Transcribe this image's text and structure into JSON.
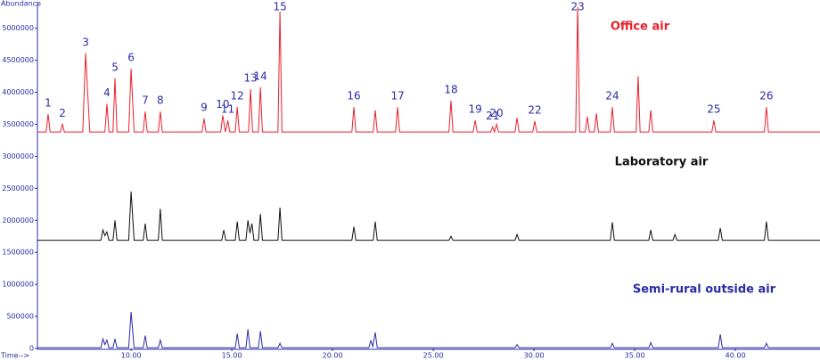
{
  "chart_data": {
    "type": "line",
    "y_label": "Abundance",
    "x_label": "Time-->",
    "xlim": [
      5.35,
      44.2
    ],
    "ylim": [
      0,
      5400000
    ],
    "xticks": [
      {
        "value": 10,
        "label": "10.00"
      },
      {
        "value": 15,
        "label": "15.00"
      },
      {
        "value": 20,
        "label": "20.00"
      },
      {
        "value": 25,
        "label": "25.00"
      },
      {
        "value": 30,
        "label": "30.00"
      },
      {
        "value": 35,
        "label": "35.00"
      },
      {
        "value": 40,
        "label": "40.00"
      }
    ],
    "yticks": [
      0,
      500000,
      1000000,
      1500000,
      2000000,
      2500000,
      3000000,
      3500000,
      4000000,
      4500000,
      5000000
    ],
    "series": [
      {
        "name": "Office air",
        "color": "#e8202a",
        "x": [
          5.35,
          5.78,
          5.88,
          5.98,
          6.49,
          6.59,
          6.69,
          7.6,
          7.74,
          7.95,
          8.7,
          8.8,
          8.9,
          9.1,
          9.2,
          9.3,
          9.88,
          10.0,
          10.15,
          10.6,
          10.7,
          10.8,
          11.35,
          11.45,
          11.55,
          13.52,
          13.62,
          13.72,
          14.45,
          14.55,
          14.68,
          14.8,
          14.9,
          15.17,
          15.27,
          15.37,
          15.83,
          15.93,
          16.03,
          16.32,
          16.42,
          16.52,
          17.29,
          17.39,
          17.49,
          20.96,
          21.06,
          21.16,
          22.02,
          22.12,
          22.22,
          23.13,
          23.23,
          23.33,
          25.78,
          25.88,
          25.98,
          26.98,
          27.08,
          27.18,
          27.85,
          27.95,
          28.04,
          28.14,
          28.24,
          29.06,
          29.16,
          29.26,
          29.94,
          30.04,
          30.14,
          32.07,
          32.17,
          32.27,
          32.55,
          32.65,
          32.75,
          33.0,
          33.1,
          33.2,
          33.79,
          33.89,
          33.99,
          35.07,
          35.17,
          35.27,
          35.7,
          35.8,
          35.9,
          38.83,
          38.93,
          39.03,
          41.44,
          41.54,
          41.64,
          44.2
        ],
        "values": [
          3380000,
          3380000,
          3660000,
          3380000,
          3380000,
          3500000,
          3380000,
          3380000,
          4610000,
          3380000,
          3380000,
          3820000,
          3380000,
          3380000,
          4220000,
          3380000,
          3380000,
          4370000,
          3380000,
          3380000,
          3700000,
          3380000,
          3380000,
          3700000,
          3380000,
          3380000,
          3590000,
          3380000,
          3380000,
          3640000,
          3380000,
          3560000,
          3380000,
          3380000,
          3770000,
          3380000,
          3380000,
          4050000,
          3380000,
          3380000,
          4080000,
          3380000,
          3380000,
          5260000,
          3380000,
          3380000,
          3770000,
          3380000,
          3380000,
          3720000,
          3380000,
          3380000,
          3770000,
          3380000,
          3380000,
          3870000,
          3380000,
          3380000,
          3560000,
          3380000,
          3380000,
          3460000,
          3380000,
          3500000,
          3380000,
          3380000,
          3600000,
          3380000,
          3380000,
          3550000,
          3380000,
          3380000,
          5330000,
          3380000,
          3380000,
          3620000,
          3380000,
          3380000,
          3670000,
          3380000,
          3380000,
          3770000,
          3380000,
          3380000,
          4250000,
          3380000,
          3380000,
          3720000,
          3380000,
          3380000,
          3560000,
          3380000,
          3380000,
          3770000,
          3380000,
          3380000
        ],
        "peak_labels": [
          null,
          null,
          1,
          null,
          null,
          2,
          null,
          null,
          3,
          null,
          null,
          4,
          null,
          null,
          5,
          null,
          null,
          6,
          null,
          null,
          7,
          null,
          null,
          8,
          null,
          null,
          9,
          null,
          null,
          10,
          null,
          11,
          null,
          null,
          12,
          null,
          null,
          13,
          null,
          null,
          14,
          null,
          null,
          15,
          null,
          null,
          16,
          null,
          null,
          null,
          null,
          null,
          17,
          null,
          null,
          18,
          null,
          null,
          19,
          null,
          null,
          21,
          null,
          20,
          null,
          null,
          null,
          null,
          null,
          22,
          null,
          null,
          23,
          null,
          null,
          null,
          null,
          null,
          null,
          null,
          null,
          24,
          null,
          null,
          null,
          null,
          null,
          null,
          null,
          null,
          25,
          null,
          null,
          26,
          null,
          null
        ]
      },
      {
        "name": "Laboratory air",
        "color": "#111111",
        "x": [
          5.35,
          8.5,
          8.6,
          8.7,
          8.8,
          8.9,
          9.1,
          9.2,
          9.3,
          9.88,
          10.0,
          10.15,
          10.6,
          10.7,
          10.8,
          11.35,
          11.45,
          11.55,
          14.5,
          14.6,
          14.7,
          15.17,
          15.27,
          15.37,
          15.7,
          15.8,
          15.9,
          16.0,
          16.1,
          16.32,
          16.42,
          16.52,
          17.29,
          17.39,
          17.49,
          20.96,
          21.06,
          21.16,
          22.02,
          22.12,
          22.22,
          25.78,
          25.88,
          25.98,
          29.06,
          29.16,
          29.26,
          33.79,
          33.89,
          33.99,
          35.7,
          35.8,
          35.9,
          36.9,
          37.0,
          37.1,
          39.15,
          39.25,
          39.35,
          41.44,
          41.54,
          41.64,
          44.2
        ],
        "values": [
          1690000,
          1690000,
          1850000,
          1760000,
          1820000,
          1690000,
          1690000,
          2000000,
          1690000,
          1690000,
          2450000,
          1690000,
          1690000,
          1950000,
          1690000,
          1690000,
          2180000,
          1690000,
          1690000,
          1850000,
          1690000,
          1690000,
          1980000,
          1690000,
          1690000,
          2000000,
          1800000,
          1950000,
          1690000,
          1690000,
          2100000,
          1690000,
          1690000,
          2200000,
          1690000,
          1690000,
          1900000,
          1690000,
          1690000,
          1980000,
          1690000,
          1690000,
          1750000,
          1690000,
          1690000,
          1780000,
          1690000,
          1690000,
          1970000,
          1690000,
          1690000,
          1850000,
          1690000,
          1690000,
          1780000,
          1690000,
          1690000,
          1880000,
          1690000,
          1690000,
          1980000,
          1690000,
          1690000
        ]
      },
      {
        "name": "Semi-rural outside air",
        "color": "#2b2ba6",
        "x": [
          5.35,
          8.5,
          8.6,
          8.7,
          8.8,
          8.9,
          9.1,
          9.2,
          9.3,
          9.88,
          10.0,
          10.15,
          10.6,
          10.7,
          10.8,
          11.35,
          11.45,
          11.55,
          15.17,
          15.27,
          15.37,
          15.7,
          15.8,
          15.9,
          16.32,
          16.42,
          16.52,
          17.29,
          17.39,
          17.49,
          21.8,
          21.9,
          22.0,
          22.12,
          22.22,
          29.06,
          29.16,
          29.26,
          33.79,
          33.89,
          33.99,
          35.7,
          35.8,
          35.9,
          39.15,
          39.25,
          39.35,
          41.44,
          41.54,
          41.64,
          44.2
        ],
        "values": [
          10000,
          10000,
          150000,
          60000,
          130000,
          10000,
          10000,
          150000,
          10000,
          10000,
          570000,
          10000,
          10000,
          200000,
          10000,
          10000,
          130000,
          10000,
          10000,
          230000,
          10000,
          10000,
          300000,
          10000,
          10000,
          270000,
          10000,
          10000,
          80000,
          10000,
          10000,
          120000,
          30000,
          250000,
          10000,
          10000,
          60000,
          10000,
          10000,
          80000,
          10000,
          10000,
          90000,
          10000,
          10000,
          220000,
          10000,
          10000,
          80000,
          10000,
          10000
        ]
      }
    ]
  }
}
